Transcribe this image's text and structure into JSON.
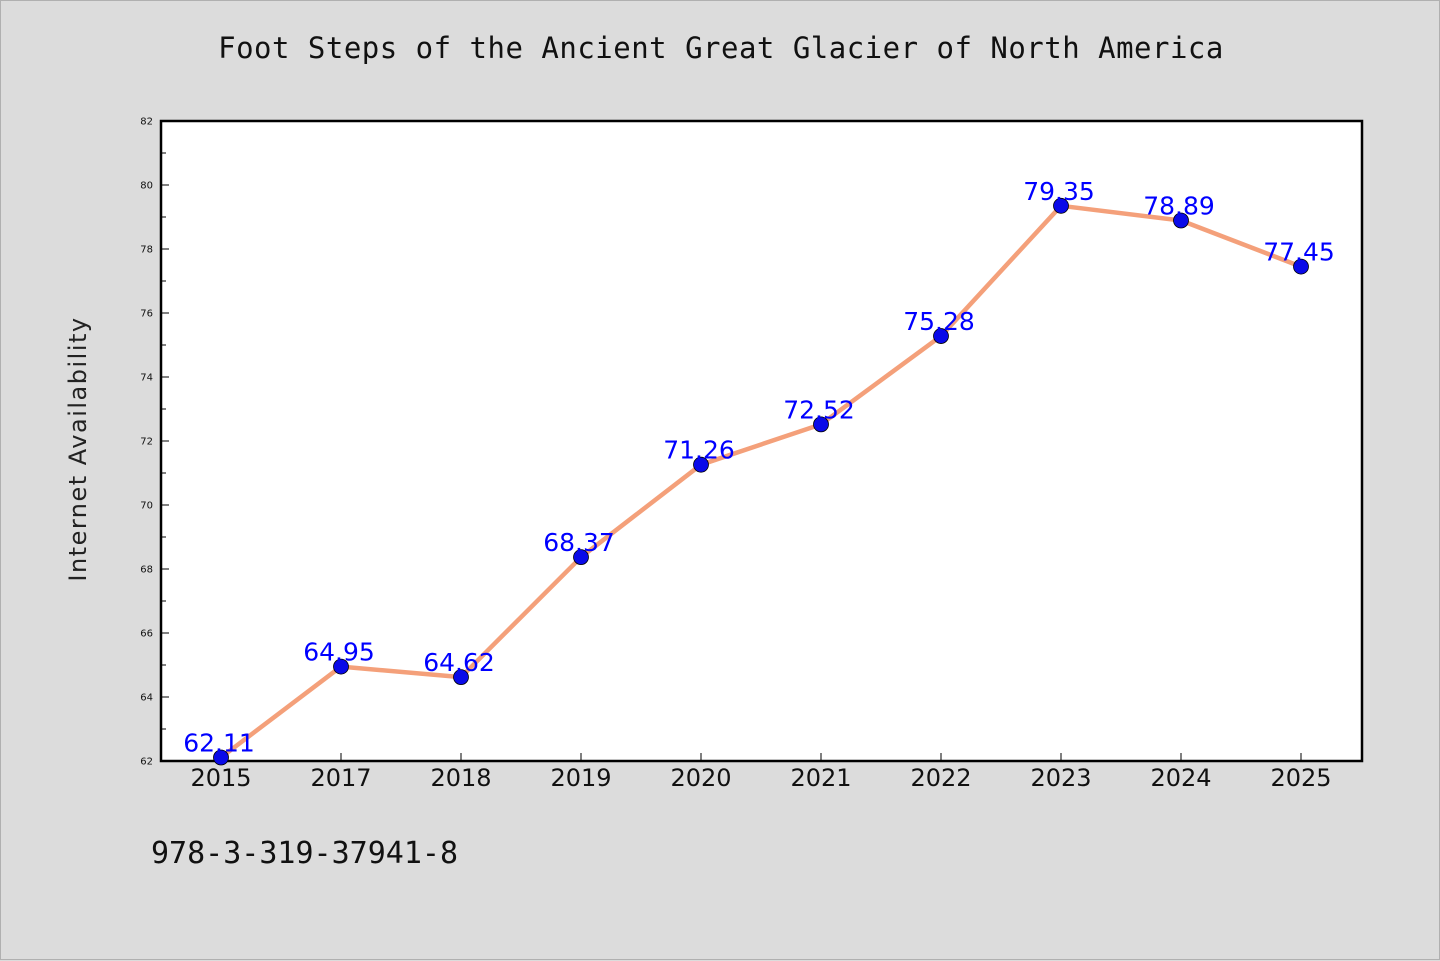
{
  "page": {
    "background": "#dcdcdc",
    "footer_text": "978-3-319-37941-8"
  },
  "chart_data": {
    "type": "line",
    "title": "Foot Steps of the Ancient Great Glacier of North America",
    "xlabel": "",
    "ylabel": "Internet Availability",
    "categories": [
      "2015",
      "2017",
      "2018",
      "2019",
      "2020",
      "2021",
      "2022",
      "2023",
      "2024",
      "2025"
    ],
    "series": [
      {
        "values": [
          62.11,
          64.95,
          64.62,
          68.37,
          71.26,
          72.52,
          75.28,
          79.35,
          78.89,
          77.45
        ],
        "labels": [
          "62.11",
          "64.95",
          "64.62",
          "68.37",
          "71.26",
          "72.52",
          "75.28",
          "79.35",
          "78.89",
          "77.45"
        ],
        "line_color": "#f4a07a",
        "marker_color": "#0a0ae8",
        "label_color": "#0000ff"
      }
    ],
    "ylim": [
      62,
      82
    ],
    "yticks": [
      "62",
      "64",
      "66",
      "68",
      "70",
      "72",
      "74",
      "76",
      "78",
      "80",
      "82"
    ],
    "grid": false,
    "legend": "none",
    "plot_background": "#ffffff"
  }
}
